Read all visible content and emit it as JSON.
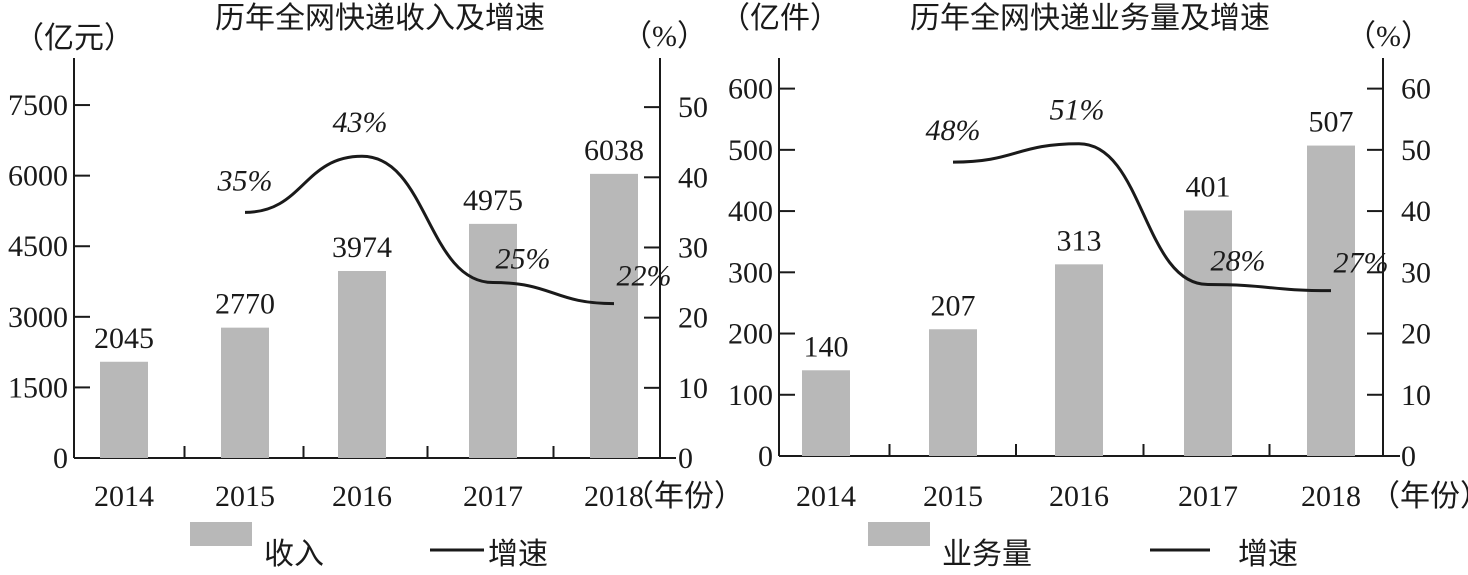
{
  "chart_data": [
    {
      "type": "bar+line",
      "title": "历年全网快递收入及增速",
      "left_unit": "（亿元）",
      "right_unit": "（%）",
      "x_unit": "（年份）",
      "categories": [
        "2014",
        "2015",
        "2016",
        "2017",
        "2018"
      ],
      "bar_series": {
        "name": "收入",
        "values": [
          2045,
          2770,
          3974,
          4975,
          6038
        ],
        "labels": [
          "2045",
          "2770",
          "3974",
          "4975",
          "6038"
        ]
      },
      "line_series": {
        "name": "增速",
        "values": [
          null,
          35,
          43,
          25,
          22
        ],
        "labels": [
          "",
          "35%",
          "43%",
          "25%",
          "22%"
        ]
      },
      "y_left": {
        "min": 0,
        "max": 8500,
        "ticks": [
          0,
          1500,
          3000,
          4500,
          6000,
          7500
        ],
        "tick_labels": [
          "0",
          "1500",
          "3000",
          "4500",
          "6000",
          "7500"
        ]
      },
      "y_right": {
        "min": 0,
        "max": 57,
        "ticks": [
          0,
          10,
          20,
          30,
          40,
          50
        ],
        "tick_labels": [
          "0",
          "10",
          "20",
          "30",
          "40",
          "50"
        ]
      },
      "legend": {
        "bar": "收入",
        "line": "增速",
        "placement": "bottom"
      }
    },
    {
      "type": "bar+line",
      "title": "历年全网快递业务量及增速",
      "left_unit": "（亿件）",
      "right_unit": "（%）",
      "x_unit": "（年份）",
      "categories": [
        "2014",
        "2015",
        "2016",
        "2017",
        "2018"
      ],
      "bar_series": {
        "name": "业务量",
        "values": [
          140,
          207,
          313,
          401,
          507
        ],
        "labels": [
          "140",
          "207",
          "313",
          "401",
          "507"
        ]
      },
      "line_series": {
        "name": "增速",
        "values": [
          null,
          48,
          51,
          28,
          27
        ],
        "labels": [
          "",
          "48%",
          "51%",
          "28%",
          "27%"
        ]
      },
      "y_left": {
        "min": 0,
        "max": 650,
        "ticks": [
          0,
          100,
          200,
          300,
          400,
          500,
          600
        ],
        "tick_labels": [
          "0",
          "100",
          "200",
          "300",
          "400",
          "500",
          "600"
        ]
      },
      "y_right": {
        "min": 0,
        "max": 65,
        "ticks": [
          0,
          10,
          20,
          30,
          40,
          50,
          60
        ],
        "tick_labels": [
          "0",
          "10",
          "20",
          "30",
          "40",
          "50",
          "60"
        ]
      },
      "legend": {
        "bar": "业务量",
        "line": "增速",
        "placement": "bottom"
      }
    }
  ],
  "colors": {
    "bar": "#b8b8b8",
    "line": "#1a1a1a"
  }
}
